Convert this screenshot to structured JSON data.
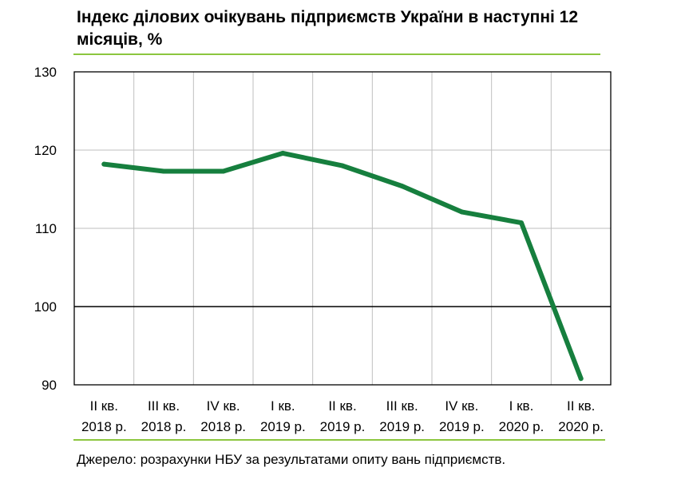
{
  "title": "Індекс ділових очікувань підприємств України в наступні 12 місяців, %",
  "source": "Джерело: розрахунки НБУ за результатами опиту вань підприємств.",
  "colors": {
    "line": "#167f3e",
    "accent_rule": "#8cc63f",
    "grid": "#bfbfbf",
    "axis": "#000000"
  },
  "chart_data": {
    "type": "line",
    "title": "Індекс ділових очікувань підприємств України в наступні 12 місяців, %",
    "xlabel": "",
    "ylabel": "",
    "ylim": [
      90,
      130
    ],
    "yticks": [
      90,
      100,
      110,
      120,
      130
    ],
    "grid": true,
    "legend": "none",
    "categories": [
      {
        "line1": "II кв.",
        "line2": "2018 р."
      },
      {
        "line1": "III кв.",
        "line2": "2018 р."
      },
      {
        "line1": "IV кв.",
        "line2": "2018 р."
      },
      {
        "line1": "I кв.",
        "line2": "2019 р."
      },
      {
        "line1": "II кв.",
        "line2": "2019 р."
      },
      {
        "line1": "III кв.",
        "line2": "2019 р."
      },
      {
        "line1": "IV кв.",
        "line2": "2019 р."
      },
      {
        "line1": "I кв.",
        "line2": "2020 р."
      },
      {
        "line1": "II кв.",
        "line2": "2020 р."
      }
    ],
    "series": [
      {
        "values": [
          118.2,
          117.3,
          117.3,
          119.6,
          118.0,
          115.4,
          112.1,
          110.7,
          90.8
        ]
      }
    ]
  }
}
